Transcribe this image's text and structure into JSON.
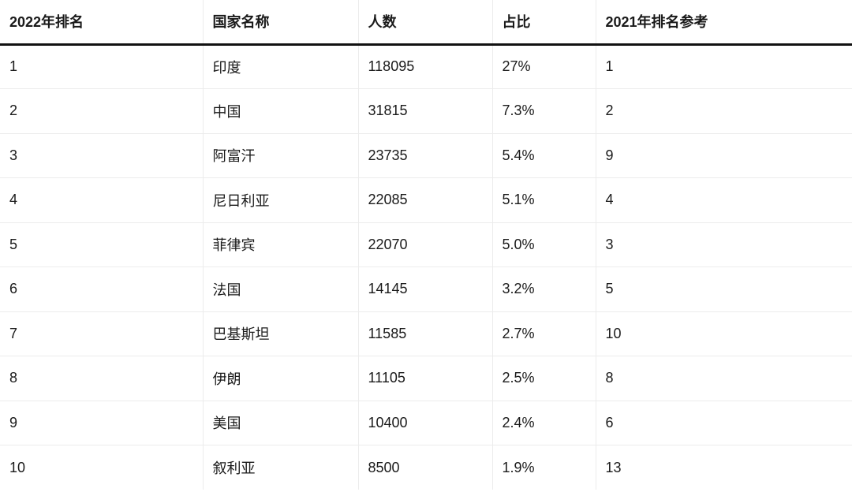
{
  "table": {
    "headers": [
      "2022年排名",
      "国家名称",
      "人数",
      "占比",
      "2021年排名参考"
    ],
    "rows": [
      [
        "1",
        "印度",
        "118095",
        "27%",
        "1"
      ],
      [
        "2",
        "中国",
        "31815",
        "7.3%",
        "2"
      ],
      [
        "3",
        "阿富汗",
        "23735",
        "5.4%",
        "9"
      ],
      [
        "4",
        "尼日利亚",
        "22085",
        "5.1%",
        "4"
      ],
      [
        "5",
        "菲律宾",
        "22070",
        "5.0%",
        "3"
      ],
      [
        "6",
        "法国",
        "14145",
        "3.2%",
        "5"
      ],
      [
        "7",
        "巴基斯坦",
        "11585",
        "2.7%",
        "10"
      ],
      [
        "8",
        "伊朗",
        "11105",
        "2.5%",
        "8"
      ],
      [
        "9",
        "美国",
        "10400",
        "2.4%",
        "6"
      ],
      [
        "10",
        "叙利亚",
        "8500",
        "1.9%",
        "13"
      ]
    ]
  }
}
